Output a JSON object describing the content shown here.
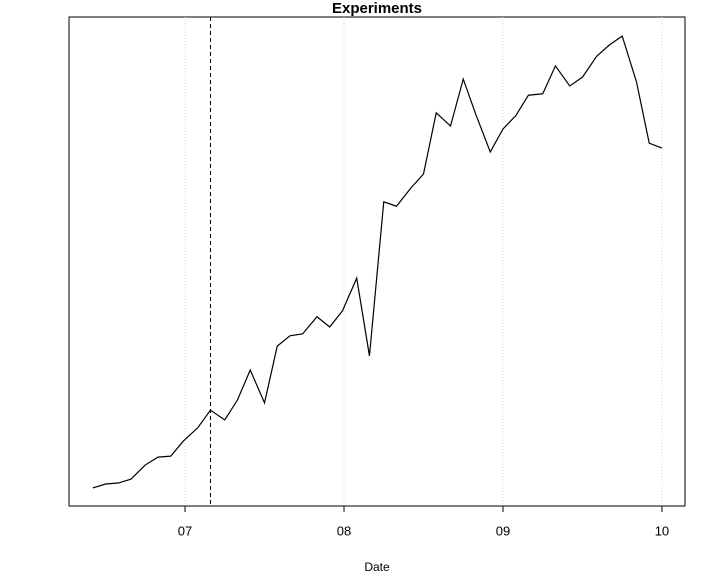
{
  "chart_data": {
    "type": "line",
    "title": "Experiments",
    "x_label": "Date",
    "x": [
      6.42,
      6.5,
      6.58,
      6.66,
      6.75,
      6.83,
      6.91,
      6.99,
      7.08,
      7.16,
      7.25,
      7.33,
      7.41,
      7.5,
      7.58,
      7.66,
      7.74,
      7.83,
      7.91,
      7.99,
      8.08,
      8.16,
      8.25,
      8.33,
      8.42,
      8.5,
      8.58,
      8.67,
      8.75,
      8.83,
      8.92,
      9.0,
      9.08,
      9.16,
      9.25,
      9.33,
      9.42,
      9.5,
      9.59,
      9.67,
      9.75,
      9.84,
      9.92,
      10.0
    ],
    "values": [
      3.7,
      4.5,
      4.7,
      5.5,
      8.4,
      10.0,
      10.2,
      13.3,
      16.0,
      19.6,
      17.6,
      21.7,
      27.8,
      21.1,
      32.7,
      34.8,
      35.2,
      38.7,
      36.6,
      39.9,
      46.6,
      30.7,
      62.2,
      61.3,
      65.0,
      67.9,
      80.4,
      77.7,
      87.3,
      80.0,
      72.4,
      77.1,
      79.8,
      84.0,
      84.3,
      90.0,
      85.9,
      87.7,
      92.0,
      94.3,
      96.1,
      86.7,
      74.2,
      73.2
    ],
    "color": "#000000",
    "xlim": [
      6.27,
      10.145
    ],
    "xticks": [
      {
        "value": 7,
        "label": "07"
      },
      {
        "value": 8,
        "label": "08"
      },
      {
        "value": 9,
        "label": "09"
      },
      {
        "value": 10,
        "label": "10"
      }
    ],
    "ylim": [
      0,
      100
    ],
    "grid": true,
    "vline": 7.16
  }
}
